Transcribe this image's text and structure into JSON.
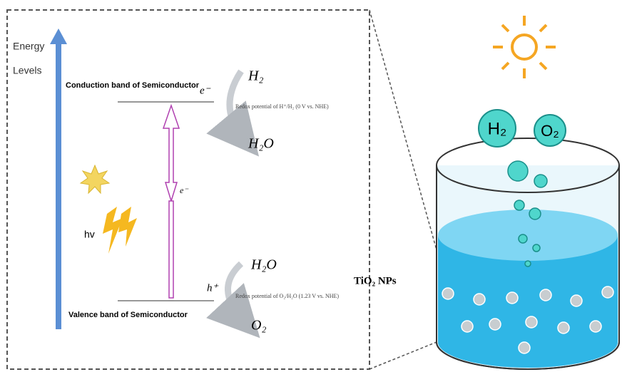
{
  "energy_axis": {
    "label_lines": [
      "Energy",
      "Levels"
    ]
  },
  "bands": {
    "conduction": "Conduction band of Semiconductor",
    "valence": "Valence band of Semiconductor"
  },
  "charges": {
    "electron_top": "e⁻",
    "electron_mid": "e⁻",
    "hole": "h⁺"
  },
  "light": "hv",
  "reduction": {
    "product": "H₂",
    "reactant": "H₂O",
    "potential": "Redox potential of H⁺/H₂ (0 V vs. NHE)"
  },
  "oxidation": {
    "reactant": "H₂O",
    "product": "O₂",
    "potential": "Redox potential of O₂/H₂O (1.23 V vs. NHE)"
  },
  "reactor": {
    "label": "TiO₂ NPs",
    "gas_bubbles": [
      "H₂",
      "O₂"
    ]
  }
}
